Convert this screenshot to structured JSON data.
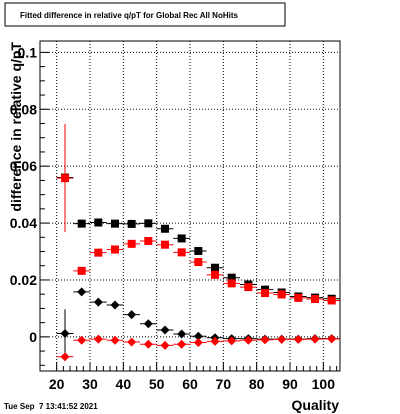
{
  "chart_data": {
    "type": "scatter",
    "title": "Fitted difference in relative q/pT for Global Rec All NoHits",
    "xlabel": "Quality",
    "ylabel": "difference in relative q/pT",
    "xlim": [
      15,
      105
    ],
    "ylim": [
      -0.012,
      0.104
    ],
    "x_ticks": [
      20,
      30,
      40,
      50,
      60,
      70,
      80,
      90,
      100
    ],
    "y_ticks": [
      0,
      0.02,
      0.04,
      0.06,
      0.08,
      0.1
    ],
    "y_tick_labels": [
      "0",
      "0.02",
      "0.04",
      "0.06",
      "0.08",
      "0.1"
    ],
    "grid": true,
    "bin_half_width": 2.5,
    "series": [
      {
        "marker": "square",
        "color": "#000000",
        "points": [
          {
            "x": 22.5,
            "y": 0.056,
            "err": 0.0
          },
          {
            "x": 27.5,
            "y": 0.0398,
            "err": 0.0008
          },
          {
            "x": 32.5,
            "y": 0.0402,
            "err": 0.0006
          },
          {
            "x": 37.5,
            "y": 0.0398,
            "err": 0.0005
          },
          {
            "x": 42.5,
            "y": 0.0397,
            "err": 0.0005
          },
          {
            "x": 47.5,
            "y": 0.0399,
            "err": 0.0005
          },
          {
            "x": 52.5,
            "y": 0.038,
            "err": 0.0005
          },
          {
            "x": 57.5,
            "y": 0.0346,
            "err": 0.0005
          },
          {
            "x": 62.5,
            "y": 0.0302,
            "err": 0.0005
          },
          {
            "x": 67.5,
            "y": 0.0243,
            "err": 0.0004
          },
          {
            "x": 72.5,
            "y": 0.0208,
            "err": 0.0004
          },
          {
            "x": 77.5,
            "y": 0.0184,
            "err": 0.0004
          },
          {
            "x": 82.5,
            "y": 0.0166,
            "err": 0.0004
          },
          {
            "x": 87.5,
            "y": 0.0156,
            "err": 0.0004
          },
          {
            "x": 92.5,
            "y": 0.0142,
            "err": 0.0004
          },
          {
            "x": 97.5,
            "y": 0.0138,
            "err": 0.0004
          },
          {
            "x": 102.5,
            "y": 0.0134,
            "err": 0.0004
          }
        ]
      },
      {
        "marker": "square",
        "color": "#ff0000",
        "points": [
          {
            "x": 22.5,
            "y": 0.0558,
            "err": 0.019
          },
          {
            "x": 27.5,
            "y": 0.0232,
            "err": 0.001
          },
          {
            "x": 32.5,
            "y": 0.0296,
            "err": 0.0007
          },
          {
            "x": 37.5,
            "y": 0.0307,
            "err": 0.0006
          },
          {
            "x": 42.5,
            "y": 0.0327,
            "err": 0.0005
          },
          {
            "x": 47.5,
            "y": 0.0337,
            "err": 0.0005
          },
          {
            "x": 52.5,
            "y": 0.0324,
            "err": 0.0005
          },
          {
            "x": 57.5,
            "y": 0.0297,
            "err": 0.0005
          },
          {
            "x": 62.5,
            "y": 0.0263,
            "err": 0.0005
          },
          {
            "x": 67.5,
            "y": 0.0218,
            "err": 0.0004
          },
          {
            "x": 72.5,
            "y": 0.0188,
            "err": 0.0004
          },
          {
            "x": 77.5,
            "y": 0.0175,
            "err": 0.0004
          },
          {
            "x": 82.5,
            "y": 0.0154,
            "err": 0.0004
          },
          {
            "x": 87.5,
            "y": 0.0149,
            "err": 0.0004
          },
          {
            "x": 92.5,
            "y": 0.0137,
            "err": 0.0004
          },
          {
            "x": 97.5,
            "y": 0.0133,
            "err": 0.0004
          },
          {
            "x": 102.5,
            "y": 0.0128,
            "err": 0.0004
          }
        ]
      },
      {
        "marker": "diamond",
        "color": "#000000",
        "points": [
          {
            "x": 22.5,
            "y": 0.0012,
            "err": 0.0085
          },
          {
            "x": 27.5,
            "y": 0.0158,
            "err": 0.001
          },
          {
            "x": 32.5,
            "y": 0.0122,
            "err": 0.0007
          },
          {
            "x": 37.5,
            "y": 0.0112,
            "err": 0.0006
          },
          {
            "x": 42.5,
            "y": 0.0078,
            "err": 0.0005
          },
          {
            "x": 47.5,
            "y": 0.0046,
            "err": 0.0005
          },
          {
            "x": 52.5,
            "y": 0.0024,
            "err": 0.0005
          },
          {
            "x": 57.5,
            "y": 0.001,
            "err": 0.0005
          },
          {
            "x": 62.5,
            "y": 0.0002,
            "err": 0.0004
          },
          {
            "x": 67.5,
            "y": -0.0003,
            "err": 0.0004
          },
          {
            "x": 72.5,
            "y": -0.0006,
            "err": 0.0004
          },
          {
            "x": 77.5,
            "y": -0.0006,
            "err": 0.0004
          },
          {
            "x": 82.5,
            "y": -0.0008,
            "err": 0.0004
          },
          {
            "x": 87.5,
            "y": -0.0008,
            "err": 0.0004
          },
          {
            "x": 92.5,
            "y": -0.0008,
            "err": 0.0004
          },
          {
            "x": 97.5,
            "y": -0.0006,
            "err": 0.0004
          },
          {
            "x": 102.5,
            "y": -0.0006,
            "err": 0.0004
          }
        ]
      },
      {
        "marker": "diamond",
        "color": "#ff0000",
        "points": [
          {
            "x": 22.5,
            "y": -0.007,
            "err": 0.0
          },
          {
            "x": 27.5,
            "y": -0.0012,
            "err": 0.0008
          },
          {
            "x": 32.5,
            "y": -0.0008,
            "err": 0.0006
          },
          {
            "x": 37.5,
            "y": -0.0012,
            "err": 0.0005
          },
          {
            "x": 42.5,
            "y": -0.0018,
            "err": 0.0005
          },
          {
            "x": 47.5,
            "y": -0.0026,
            "err": 0.0005
          },
          {
            "x": 52.5,
            "y": -0.003,
            "err": 0.0005
          },
          {
            "x": 57.5,
            "y": -0.0026,
            "err": 0.0005
          },
          {
            "x": 62.5,
            "y": -0.002,
            "err": 0.0004
          },
          {
            "x": 67.5,
            "y": -0.0016,
            "err": 0.0004
          },
          {
            "x": 72.5,
            "y": -0.0014,
            "err": 0.0004
          },
          {
            "x": 77.5,
            "y": -0.0012,
            "err": 0.0004
          },
          {
            "x": 82.5,
            "y": -0.001,
            "err": 0.0004
          },
          {
            "x": 87.5,
            "y": -0.0009,
            "err": 0.0004
          },
          {
            "x": 92.5,
            "y": -0.0009,
            "err": 0.0004
          },
          {
            "x": 97.5,
            "y": -0.0008,
            "err": 0.0004
          },
          {
            "x": 102.5,
            "y": -0.0007,
            "err": 0.0004
          }
        ]
      }
    ]
  },
  "footer": {
    "timestamp": "Tue Sep  7 13:41:52 2021"
  }
}
